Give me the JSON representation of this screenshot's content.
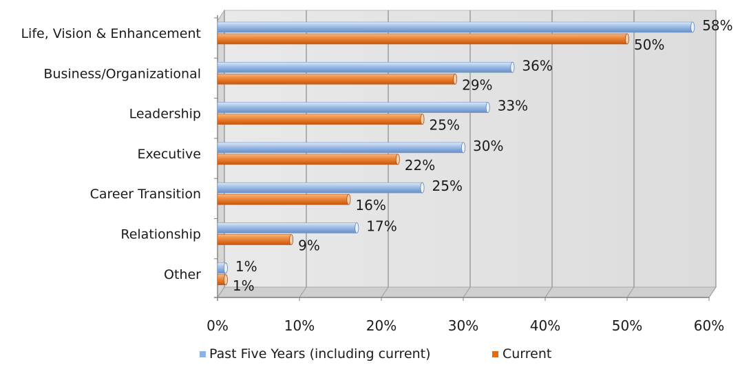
{
  "chart_data": {
    "type": "bar",
    "orientation": "horizontal",
    "style": "3d-cylinder",
    "categories": [
      "Life, Vision & Enhancement",
      "Business/Organizational",
      "Leadership",
      "Executive",
      "Career Transition",
      "Relationship",
      "Other"
    ],
    "series": [
      {
        "name": "Past Five Years (including current)",
        "color": "#8db3e2",
        "values": [
          58,
          36,
          33,
          30,
          25,
          17,
          1
        ],
        "value_labels": [
          "58%",
          "36%",
          "33%",
          "30%",
          "25%",
          "17%",
          "1%"
        ]
      },
      {
        "name": "Current",
        "color": "#e46c0a",
        "values": [
          50,
          29,
          25,
          22,
          16,
          9,
          1
        ],
        "value_labels": [
          "50%",
          "29%",
          "25%",
          "22%",
          "16%",
          "9%",
          "1%"
        ]
      }
    ],
    "xlim": [
      0,
      60
    ],
    "x_ticks": [
      "0%",
      "10%",
      "20%",
      "30%",
      "40%",
      "50%",
      "60%"
    ],
    "unit": "%",
    "grid": true,
    "legend_position": "bottom",
    "title": "",
    "xlabel": "",
    "ylabel": ""
  }
}
